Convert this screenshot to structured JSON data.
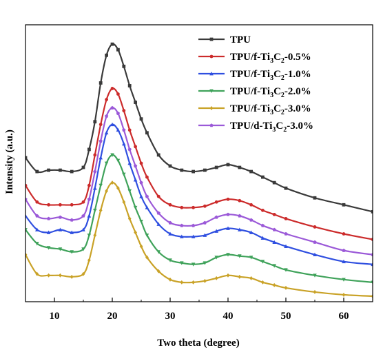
{
  "chart_data": {
    "type": "line",
    "title": "",
    "xlabel": "Two theta (degree)",
    "ylabel": "Intensity (a.u.)",
    "xlim": [
      5,
      65
    ],
    "ylim": [
      0,
      100
    ],
    "xticks": [
      10,
      20,
      30,
      40,
      50,
      60
    ],
    "y_ticks_labeled": false,
    "grid": false,
    "legend_position": "top-right",
    "x": [
      5,
      7,
      9,
      11,
      13,
      15,
      16,
      17,
      18,
      19,
      20,
      21,
      22,
      23,
      24,
      25,
      26,
      28,
      30,
      32,
      34,
      36,
      38,
      40,
      42,
      44,
      46,
      48,
      50,
      55,
      60,
      65
    ],
    "series": [
      {
        "name": "TPU",
        "legend_parts": [
          {
            "t": "TPU",
            "sub": false
          }
        ],
        "color": "#3a3a3a",
        "marker": "square",
        "values": [
          52,
          47,
          47.5,
          47.5,
          47,
          48.5,
          55,
          65,
          79,
          89,
          93,
          91,
          85,
          78,
          72,
          66,
          61,
          53,
          49,
          47.5,
          47,
          47.5,
          48.5,
          49.5,
          48.5,
          47,
          45,
          43,
          41,
          37.5,
          35,
          32.5
        ]
      },
      {
        "name": "TPU/f-Ti3C2-0.5%",
        "legend_parts": [
          {
            "t": "TPU/f-Ti",
            "sub": false
          },
          {
            "t": "3",
            "sub": true
          },
          {
            "t": "C",
            "sub": false
          },
          {
            "t": "2",
            "sub": true
          },
          {
            "t": "-0.5%",
            "sub": false
          }
        ],
        "color": "#cc2b2b",
        "marker": "circle",
        "values": [
          42,
          36,
          35,
          35,
          35,
          36,
          42,
          53,
          64,
          73,
          77,
          75,
          69,
          62,
          56,
          50,
          45,
          38,
          35,
          34,
          34,
          34.5,
          36,
          37,
          36.5,
          35,
          33,
          31.5,
          30,
          27,
          24.5,
          22.5
        ]
      },
      {
        "name": "TPU/f-Ti3C2-1.0%",
        "legend_parts": [
          {
            "t": "TPU/f-Ti",
            "sub": false
          },
          {
            "t": "3",
            "sub": true
          },
          {
            "t": "C",
            "sub": false
          },
          {
            "t": "2",
            "sub": true
          },
          {
            "t": "-1.0%",
            "sub": false
          }
        ],
        "color": "#2f4fe0",
        "marker": "triangle-up",
        "values": [
          31,
          26,
          25,
          26,
          25,
          26,
          31,
          41,
          52,
          61,
          64,
          62,
          57,
          50,
          44,
          38,
          34,
          28,
          24.5,
          23.5,
          23.5,
          24,
          25.5,
          26.5,
          26,
          25,
          23,
          21.5,
          20,
          17,
          14.5,
          13.5
        ]
      },
      {
        "name": "TPU/f-Ti3C2-2.0%",
        "legend_parts": [
          {
            "t": "TPU/f-Ti",
            "sub": false
          },
          {
            "t": "3",
            "sub": true
          },
          {
            "t": "C",
            "sub": false
          },
          {
            "t": "2",
            "sub": true
          },
          {
            "t": "-2.0%",
            "sub": false
          }
        ],
        "color": "#3fa25a",
        "marker": "triangle-down",
        "values": [
          26,
          21,
          19.5,
          19,
          18,
          19,
          24,
          33,
          42,
          50,
          53,
          51,
          46,
          40,
          34,
          29,
          24,
          18,
          15,
          14,
          13.5,
          14,
          16,
          17,
          16.5,
          16,
          14.5,
          13,
          11.5,
          9.5,
          8,
          7
        ]
      },
      {
        "name": "TPU/f-Ti3C2-3.0%",
        "legend_parts": [
          {
            "t": " TPU/f-Ti",
            "sub": false
          },
          {
            "t": "3",
            "sub": true
          },
          {
            "t": "C",
            "sub": false
          },
          {
            "t": "2",
            "sub": true
          },
          {
            "t": "-3.0%",
            "sub": false
          }
        ],
        "color": "#c9a227",
        "marker": "diamond",
        "values": [
          17,
          10,
          9.5,
          9.5,
          9,
          10,
          15,
          24,
          33,
          40,
          43,
          41,
          36,
          30,
          25,
          20,
          16,
          11,
          8,
          7,
          7,
          7.5,
          8.5,
          9.5,
          9,
          8.5,
          7,
          6,
          5,
          3.5,
          2.5,
          2
        ]
      },
      {
        "name": "TPU/d-Ti3C2-3.0%",
        "legend_parts": [
          {
            "t": "TPU/d-Ti",
            "sub": false
          },
          {
            "t": "3",
            "sub": true
          },
          {
            "t": "C",
            "sub": false
          },
          {
            "t": "2",
            "sub": true
          },
          {
            "t": "-3.0%",
            "sub": false
          }
        ],
        "color": "#9b59d8",
        "marker": "pentagon",
        "values": [
          37,
          31,
          30,
          30.5,
          29.5,
          31,
          37,
          47,
          58,
          67,
          70,
          68,
          62,
          55,
          49,
          43,
          38,
          32,
          28.5,
          27.5,
          27.5,
          28.5,
          30.5,
          31.5,
          31,
          29.5,
          27.5,
          26,
          24.5,
          21.5,
          18.5,
          17
        ]
      }
    ]
  }
}
